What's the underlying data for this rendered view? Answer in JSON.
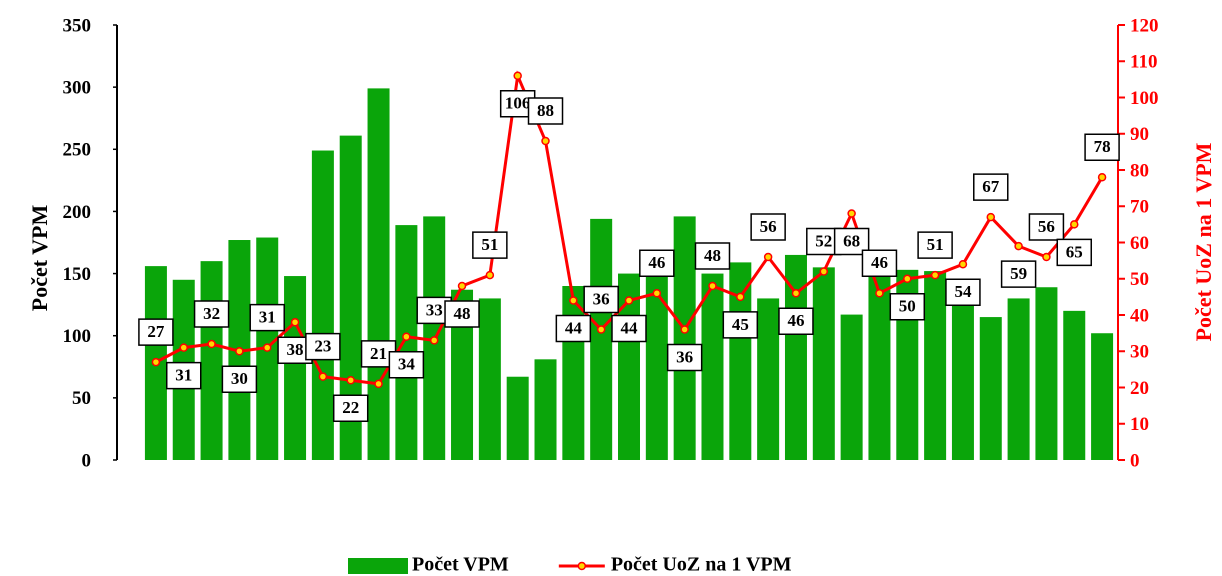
{
  "chart_data": {
    "type": "bar_line",
    "categories": [
      null,
      null,
      null,
      null,
      null,
      null,
      null,
      null,
      null,
      null,
      null,
      null,
      null,
      null,
      null,
      null,
      null,
      null,
      null,
      null,
      null,
      null,
      null,
      null,
      null,
      null,
      null,
      null,
      null,
      null,
      null,
      null,
      null,
      null,
      null
    ],
    "series": [
      {
        "name": "Počet VPM",
        "type": "bar",
        "color": "#0aa50a",
        "axis": "y",
        "values": [
          156,
          145,
          160,
          177,
          179,
          148,
          249,
          261,
          299,
          189,
          196,
          137,
          130,
          67,
          81,
          140,
          194,
          150,
          155,
          196,
          150,
          159,
          130,
          165,
          155,
          117,
          150,
          153,
          152,
          141,
          115,
          130,
          139,
          120,
          102
        ]
      },
      {
        "name": "Počet UoZ na 1 VPM",
        "type": "line",
        "color": "#ff0000",
        "marker_color": "#ffd700",
        "axis": "y2",
        "values": [
          27,
          31,
          32,
          30,
          31,
          38,
          23,
          22,
          21,
          34,
          33,
          48,
          51,
          106,
          88,
          44,
          36,
          44,
          46,
          36,
          48,
          45,
          56,
          46,
          52,
          68,
          46,
          50,
          51,
          54,
          67,
          59,
          56,
          65,
          78
        ]
      }
    ],
    "ylabel": "Počet VPM",
    "y2label": "Počet UoZ na 1 VPM",
    "ylim": [
      0,
      350
    ],
    "yticks": [
      0,
      50,
      100,
      150,
      200,
      250,
      300,
      350
    ],
    "y2lim": [
      0,
      120
    ],
    "y2ticks": [
      0,
      10,
      20,
      30,
      40,
      50,
      60,
      70,
      80,
      90,
      100,
      110,
      120
    ],
    "legend": "bottom"
  }
}
